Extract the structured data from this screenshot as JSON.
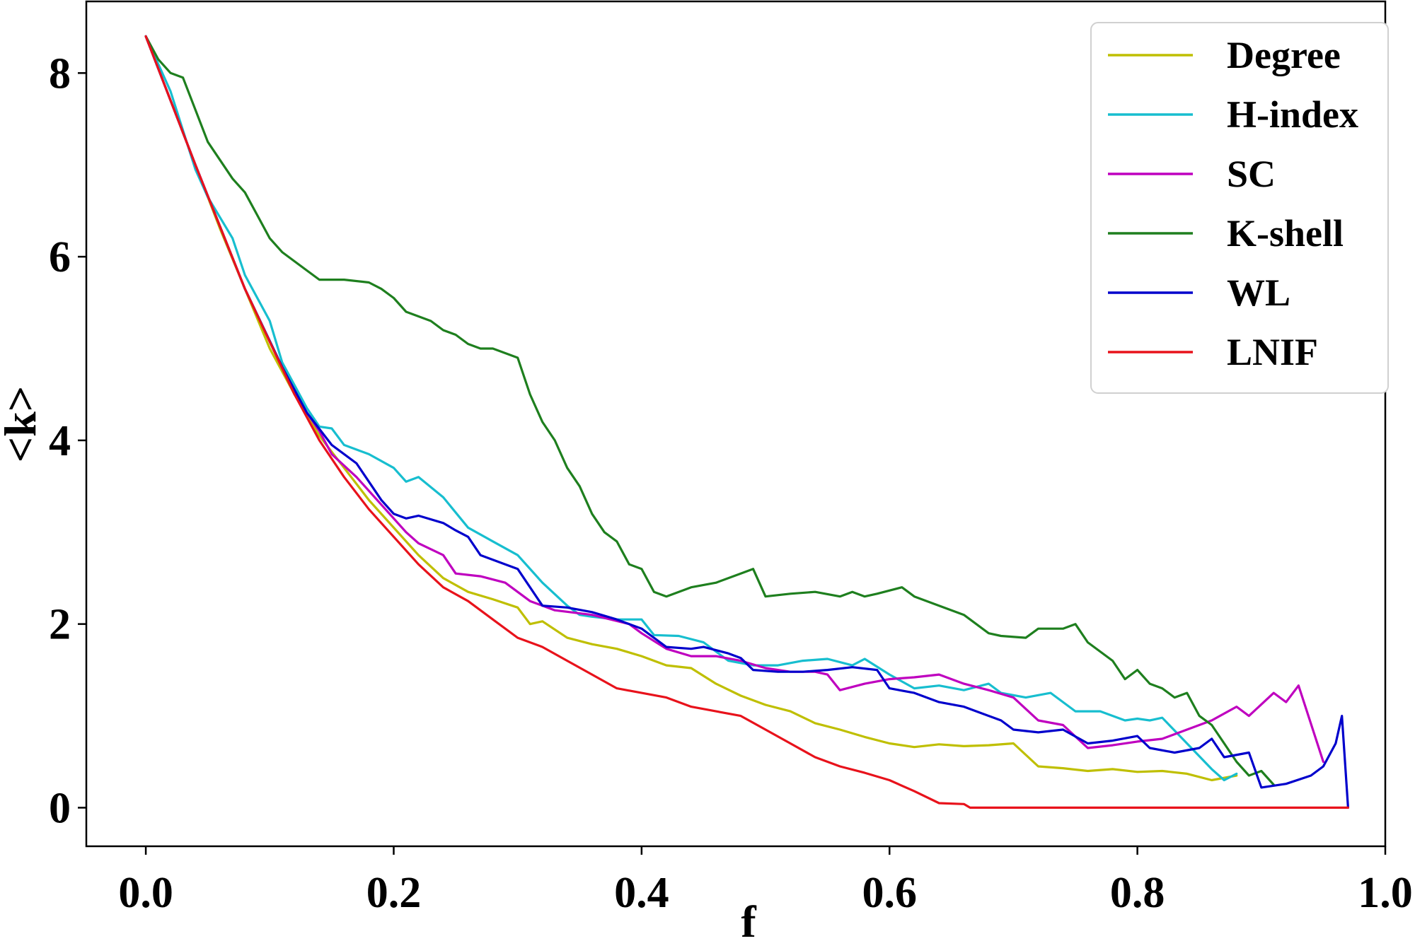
{
  "chart_data": {
    "type": "line",
    "title": "",
    "xlabel": "f",
    "ylabel": "<k>",
    "xlim": [
      -0.048,
      1.0
    ],
    "ylim": [
      -0.42,
      8.78
    ],
    "xticks": [
      0.0,
      0.2,
      0.4,
      0.6,
      0.8,
      1.0
    ],
    "xtick_labels": [
      "0.0",
      "0.2",
      "0.4",
      "0.6",
      "0.8",
      "1.0"
    ],
    "yticks": [
      0,
      2,
      4,
      6,
      8
    ],
    "ytick_labels": [
      "0",
      "2",
      "4",
      "6",
      "8"
    ],
    "grid": false,
    "legend_position": "top-right",
    "series": [
      {
        "name": "Degree",
        "color": "#bfbf00",
        "points": [
          [
            0.0,
            8.4
          ],
          [
            0.02,
            7.7
          ],
          [
            0.04,
            7.0
          ],
          [
            0.06,
            6.3
          ],
          [
            0.08,
            5.65
          ],
          [
            0.1,
            5.0
          ],
          [
            0.12,
            4.5
          ],
          [
            0.14,
            4.05
          ],
          [
            0.16,
            3.7
          ],
          [
            0.18,
            3.35
          ],
          [
            0.2,
            3.05
          ],
          [
            0.22,
            2.75
          ],
          [
            0.24,
            2.5
          ],
          [
            0.26,
            2.35
          ],
          [
            0.28,
            2.27
          ],
          [
            0.3,
            2.18
          ],
          [
            0.31,
            2.0
          ],
          [
            0.32,
            2.03
          ],
          [
            0.34,
            1.85
          ],
          [
            0.36,
            1.78
          ],
          [
            0.38,
            1.73
          ],
          [
            0.4,
            1.65
          ],
          [
            0.42,
            1.55
          ],
          [
            0.44,
            1.52
          ],
          [
            0.46,
            1.35
          ],
          [
            0.48,
            1.22
          ],
          [
            0.5,
            1.12
          ],
          [
            0.52,
            1.05
          ],
          [
            0.54,
            0.92
          ],
          [
            0.56,
            0.85
          ],
          [
            0.58,
            0.77
          ],
          [
            0.6,
            0.7
          ],
          [
            0.62,
            0.66
          ],
          [
            0.64,
            0.69
          ],
          [
            0.66,
            0.67
          ],
          [
            0.68,
            0.68
          ],
          [
            0.7,
            0.7
          ],
          [
            0.72,
            0.45
          ],
          [
            0.74,
            0.43
          ],
          [
            0.76,
            0.4
          ],
          [
            0.78,
            0.42
          ],
          [
            0.8,
            0.39
          ],
          [
            0.82,
            0.4
          ],
          [
            0.84,
            0.37
          ],
          [
            0.86,
            0.3
          ],
          [
            0.88,
            0.35
          ]
        ]
      },
      {
        "name": "H-index",
        "color": "#17becf",
        "points": [
          [
            0.0,
            8.4
          ],
          [
            0.02,
            7.8
          ],
          [
            0.04,
            6.95
          ],
          [
            0.05,
            6.65
          ],
          [
            0.07,
            6.2
          ],
          [
            0.08,
            5.8
          ],
          [
            0.1,
            5.3
          ],
          [
            0.11,
            4.85
          ],
          [
            0.12,
            4.6
          ],
          [
            0.13,
            4.35
          ],
          [
            0.14,
            4.15
          ],
          [
            0.15,
            4.13
          ],
          [
            0.16,
            3.95
          ],
          [
            0.18,
            3.85
          ],
          [
            0.2,
            3.7
          ],
          [
            0.21,
            3.55
          ],
          [
            0.22,
            3.6
          ],
          [
            0.24,
            3.38
          ],
          [
            0.26,
            3.05
          ],
          [
            0.28,
            2.9
          ],
          [
            0.3,
            2.75
          ],
          [
            0.32,
            2.45
          ],
          [
            0.34,
            2.2
          ],
          [
            0.35,
            2.1
          ],
          [
            0.36,
            2.08
          ],
          [
            0.38,
            2.05
          ],
          [
            0.4,
            2.05
          ],
          [
            0.41,
            1.88
          ],
          [
            0.43,
            1.87
          ],
          [
            0.45,
            1.8
          ],
          [
            0.47,
            1.6
          ],
          [
            0.49,
            1.55
          ],
          [
            0.51,
            1.55
          ],
          [
            0.53,
            1.6
          ],
          [
            0.55,
            1.62
          ],
          [
            0.57,
            1.55
          ],
          [
            0.58,
            1.62
          ],
          [
            0.6,
            1.45
          ],
          [
            0.62,
            1.3
          ],
          [
            0.64,
            1.33
          ],
          [
            0.66,
            1.28
          ],
          [
            0.68,
            1.35
          ],
          [
            0.69,
            1.25
          ],
          [
            0.71,
            1.2
          ],
          [
            0.73,
            1.25
          ],
          [
            0.75,
            1.05
          ],
          [
            0.77,
            1.05
          ],
          [
            0.79,
            0.95
          ],
          [
            0.8,
            0.97
          ],
          [
            0.81,
            0.95
          ],
          [
            0.82,
            0.98
          ],
          [
            0.84,
            0.7
          ],
          [
            0.86,
            0.42
          ],
          [
            0.87,
            0.3
          ],
          [
            0.88,
            0.37
          ]
        ]
      },
      {
        "name": "SC",
        "color": "#bf00bf",
        "points": [
          [
            0.0,
            8.4
          ],
          [
            0.04,
            7.0
          ],
          [
            0.08,
            5.65
          ],
          [
            0.12,
            4.5
          ],
          [
            0.14,
            4.1
          ],
          [
            0.15,
            3.85
          ],
          [
            0.17,
            3.6
          ],
          [
            0.19,
            3.3
          ],
          [
            0.21,
            3.0
          ],
          [
            0.22,
            2.88
          ],
          [
            0.24,
            2.75
          ],
          [
            0.25,
            2.55
          ],
          [
            0.27,
            2.52
          ],
          [
            0.29,
            2.45
          ],
          [
            0.31,
            2.25
          ],
          [
            0.33,
            2.15
          ],
          [
            0.36,
            2.1
          ],
          [
            0.39,
            2.0
          ],
          [
            0.4,
            1.9
          ],
          [
            0.42,
            1.73
          ],
          [
            0.44,
            1.65
          ],
          [
            0.46,
            1.65
          ],
          [
            0.48,
            1.6
          ],
          [
            0.5,
            1.52
          ],
          [
            0.52,
            1.48
          ],
          [
            0.54,
            1.48
          ],
          [
            0.55,
            1.45
          ],
          [
            0.56,
            1.28
          ],
          [
            0.58,
            1.35
          ],
          [
            0.6,
            1.4
          ],
          [
            0.62,
            1.42
          ],
          [
            0.64,
            1.45
          ],
          [
            0.66,
            1.35
          ],
          [
            0.68,
            1.28
          ],
          [
            0.7,
            1.2
          ],
          [
            0.72,
            0.95
          ],
          [
            0.74,
            0.9
          ],
          [
            0.76,
            0.65
          ],
          [
            0.78,
            0.68
          ],
          [
            0.8,
            0.72
          ],
          [
            0.82,
            0.75
          ],
          [
            0.84,
            0.85
          ],
          [
            0.86,
            0.95
          ],
          [
            0.88,
            1.1
          ],
          [
            0.89,
            1.0
          ],
          [
            0.91,
            1.25
          ],
          [
            0.92,
            1.15
          ],
          [
            0.93,
            1.33
          ],
          [
            0.95,
            0.5
          ]
        ]
      },
      {
        "name": "K-shell",
        "color": "#1e7f1e",
        "points": [
          [
            0.0,
            8.4
          ],
          [
            0.01,
            8.15
          ],
          [
            0.02,
            8.0
          ],
          [
            0.03,
            7.95
          ],
          [
            0.04,
            7.6
          ],
          [
            0.05,
            7.25
          ],
          [
            0.07,
            6.85
          ],
          [
            0.08,
            6.7
          ],
          [
            0.09,
            6.45
          ],
          [
            0.1,
            6.2
          ],
          [
            0.11,
            6.05
          ],
          [
            0.13,
            5.85
          ],
          [
            0.14,
            5.75
          ],
          [
            0.16,
            5.75
          ],
          [
            0.18,
            5.72
          ],
          [
            0.19,
            5.65
          ],
          [
            0.2,
            5.55
          ],
          [
            0.21,
            5.4
          ],
          [
            0.23,
            5.3
          ],
          [
            0.24,
            5.2
          ],
          [
            0.25,
            5.15
          ],
          [
            0.26,
            5.05
          ],
          [
            0.27,
            5.0
          ],
          [
            0.28,
            5.0
          ],
          [
            0.3,
            4.9
          ],
          [
            0.31,
            4.5
          ],
          [
            0.32,
            4.2
          ],
          [
            0.33,
            4.0
          ],
          [
            0.34,
            3.7
          ],
          [
            0.35,
            3.5
          ],
          [
            0.36,
            3.2
          ],
          [
            0.37,
            3.0
          ],
          [
            0.38,
            2.9
          ],
          [
            0.39,
            2.65
          ],
          [
            0.4,
            2.6
          ],
          [
            0.41,
            2.35
          ],
          [
            0.42,
            2.3
          ],
          [
            0.44,
            2.4
          ],
          [
            0.46,
            2.45
          ],
          [
            0.48,
            2.55
          ],
          [
            0.49,
            2.6
          ],
          [
            0.5,
            2.3
          ],
          [
            0.52,
            2.33
          ],
          [
            0.54,
            2.35
          ],
          [
            0.56,
            2.3
          ],
          [
            0.57,
            2.35
          ],
          [
            0.58,
            2.3
          ],
          [
            0.59,
            2.33
          ],
          [
            0.61,
            2.4
          ],
          [
            0.62,
            2.3
          ],
          [
            0.64,
            2.2
          ],
          [
            0.66,
            2.1
          ],
          [
            0.68,
            1.9
          ],
          [
            0.69,
            1.87
          ],
          [
            0.71,
            1.85
          ],
          [
            0.72,
            1.95
          ],
          [
            0.74,
            1.95
          ],
          [
            0.75,
            2.0
          ],
          [
            0.76,
            1.8
          ],
          [
            0.78,
            1.6
          ],
          [
            0.79,
            1.4
          ],
          [
            0.8,
            1.5
          ],
          [
            0.81,
            1.35
          ],
          [
            0.82,
            1.3
          ],
          [
            0.83,
            1.2
          ],
          [
            0.84,
            1.25
          ],
          [
            0.85,
            1.0
          ],
          [
            0.86,
            0.9
          ],
          [
            0.87,
            0.7
          ],
          [
            0.88,
            0.5
          ],
          [
            0.89,
            0.35
          ],
          [
            0.9,
            0.4
          ],
          [
            0.91,
            0.25
          ]
        ]
      },
      {
        "name": "WL",
        "color": "#0000cc",
        "points": [
          [
            0.0,
            8.4
          ],
          [
            0.04,
            7.0
          ],
          [
            0.08,
            5.65
          ],
          [
            0.11,
            4.8
          ],
          [
            0.13,
            4.3
          ],
          [
            0.15,
            3.95
          ],
          [
            0.17,
            3.75
          ],
          [
            0.19,
            3.35
          ],
          [
            0.2,
            3.2
          ],
          [
            0.21,
            3.15
          ],
          [
            0.22,
            3.18
          ],
          [
            0.24,
            3.1
          ],
          [
            0.25,
            3.02
          ],
          [
            0.26,
            2.95
          ],
          [
            0.27,
            2.75
          ],
          [
            0.29,
            2.65
          ],
          [
            0.3,
            2.6
          ],
          [
            0.32,
            2.2
          ],
          [
            0.34,
            2.18
          ],
          [
            0.36,
            2.13
          ],
          [
            0.38,
            2.05
          ],
          [
            0.39,
            2.0
          ],
          [
            0.4,
            1.95
          ],
          [
            0.42,
            1.75
          ],
          [
            0.44,
            1.73
          ],
          [
            0.45,
            1.75
          ],
          [
            0.47,
            1.68
          ],
          [
            0.48,
            1.63
          ],
          [
            0.49,
            1.5
          ],
          [
            0.51,
            1.48
          ],
          [
            0.53,
            1.48
          ],
          [
            0.55,
            1.5
          ],
          [
            0.57,
            1.53
          ],
          [
            0.59,
            1.5
          ],
          [
            0.6,
            1.3
          ],
          [
            0.62,
            1.25
          ],
          [
            0.64,
            1.15
          ],
          [
            0.66,
            1.1
          ],
          [
            0.67,
            1.05
          ],
          [
            0.69,
            0.95
          ],
          [
            0.7,
            0.85
          ],
          [
            0.72,
            0.82
          ],
          [
            0.74,
            0.85
          ],
          [
            0.76,
            0.7
          ],
          [
            0.78,
            0.73
          ],
          [
            0.8,
            0.78
          ],
          [
            0.81,
            0.65
          ],
          [
            0.83,
            0.6
          ],
          [
            0.85,
            0.65
          ],
          [
            0.86,
            0.75
          ],
          [
            0.87,
            0.55
          ],
          [
            0.89,
            0.6
          ],
          [
            0.9,
            0.22
          ],
          [
            0.92,
            0.26
          ],
          [
            0.94,
            0.35
          ],
          [
            0.95,
            0.45
          ],
          [
            0.96,
            0.7
          ],
          [
            0.965,
            1.0
          ],
          [
            0.97,
            0.0
          ]
        ]
      },
      {
        "name": "LNIF",
        "color": "#e8121b",
        "points": [
          [
            0.0,
            8.4
          ],
          [
            0.04,
            7.0
          ],
          [
            0.08,
            5.65
          ],
          [
            0.12,
            4.5
          ],
          [
            0.14,
            4.0
          ],
          [
            0.16,
            3.6
          ],
          [
            0.18,
            3.25
          ],
          [
            0.2,
            2.95
          ],
          [
            0.22,
            2.65
          ],
          [
            0.24,
            2.4
          ],
          [
            0.26,
            2.25
          ],
          [
            0.28,
            2.05
          ],
          [
            0.3,
            1.85
          ],
          [
            0.32,
            1.75
          ],
          [
            0.34,
            1.6
          ],
          [
            0.36,
            1.45
          ],
          [
            0.38,
            1.3
          ],
          [
            0.4,
            1.25
          ],
          [
            0.42,
            1.2
          ],
          [
            0.44,
            1.1
          ],
          [
            0.46,
            1.05
          ],
          [
            0.48,
            1.0
          ],
          [
            0.5,
            0.85
          ],
          [
            0.52,
            0.7
          ],
          [
            0.54,
            0.55
          ],
          [
            0.56,
            0.45
          ],
          [
            0.58,
            0.38
          ],
          [
            0.6,
            0.3
          ],
          [
            0.62,
            0.18
          ],
          [
            0.64,
            0.05
          ],
          [
            0.66,
            0.04
          ],
          [
            0.665,
            0.0
          ],
          [
            0.97,
            0.0
          ]
        ]
      }
    ]
  }
}
